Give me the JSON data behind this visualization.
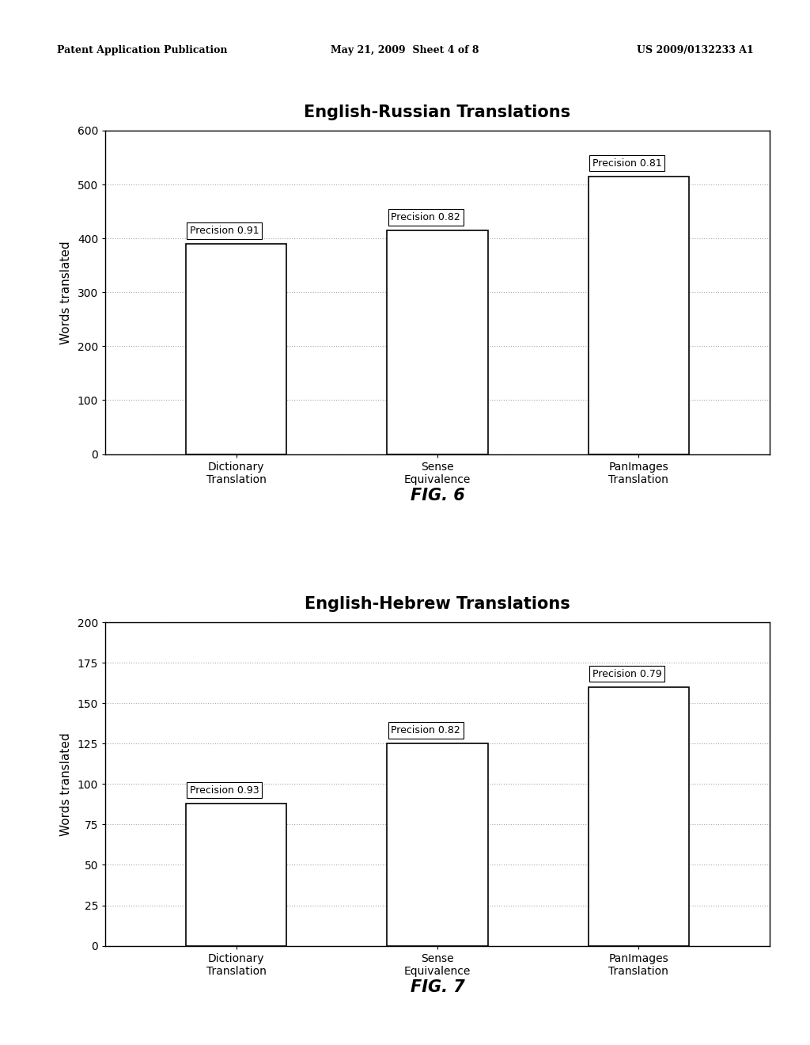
{
  "header_left": "Patent Application Publication",
  "header_center": "May 21, 2009  Sheet 4 of 8",
  "header_right": "US 2009/0132233 A1",
  "chart1": {
    "title": "English-Russian Translations",
    "categories": [
      "Dictionary\nTranslation",
      "Sense\nEquivalence",
      "PanImages\nTranslation"
    ],
    "values": [
      390,
      415,
      515
    ],
    "precision_labels": [
      "Precision 0.91",
      "Precision 0.82",
      "Precision 0.81"
    ],
    "ylabel": "Words translated",
    "ylim": [
      0,
      600
    ],
    "yticks": [
      0,
      100,
      200,
      300,
      400,
      500,
      600
    ],
    "fig_label": "FIG. 6"
  },
  "chart2": {
    "title": "English-Hebrew Translations",
    "categories": [
      "Dictionary\nTranslation",
      "Sense\nEquivalence",
      "PanImages\nTranslation"
    ],
    "values": [
      88,
      125,
      160
    ],
    "precision_labels": [
      "Precision 0.93",
      "Precision 0.82",
      "Precision 0.79"
    ],
    "ylabel": "Words translated",
    "ylim": [
      0,
      200
    ],
    "yticks": [
      0,
      25,
      50,
      75,
      100,
      125,
      150,
      175,
      200
    ],
    "fig_label": "FIG. 7"
  },
  "bar_color": "#ffffff",
  "bar_edgecolor": "#000000",
  "bar_width": 0.5,
  "grid_color": "#aaaaaa",
  "grid_linestyle": ":",
  "background_color": "#ffffff",
  "title_fontsize": 15,
  "ylabel_fontsize": 11,
  "tick_fontsize": 10,
  "annotation_fontsize": 9,
  "fig_label_fontsize": 15,
  "header_fontsize": 9
}
